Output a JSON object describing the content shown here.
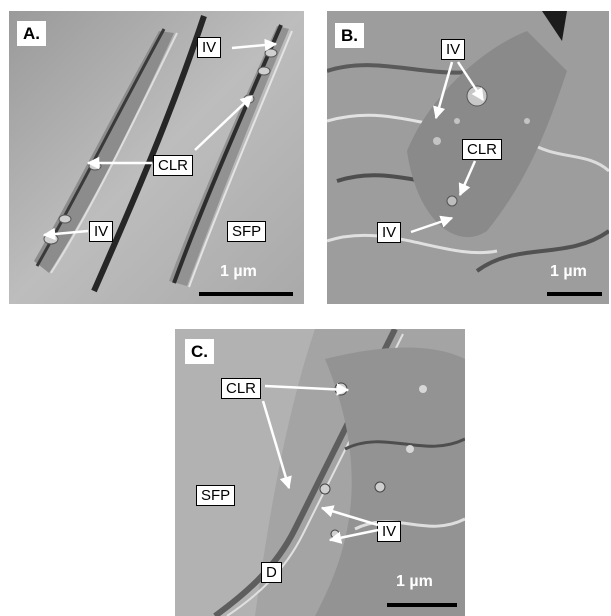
{
  "panels": [
    {
      "letter": "A.",
      "labels": {
        "iv_top": "IV",
        "clr": "CLR",
        "iv_bottom": "IV",
        "sfp": "SFP"
      },
      "scale": "1 µm"
    },
    {
      "letter": "B.",
      "labels": {
        "iv_top": "IV",
        "clr": "CLR",
        "iv_bottom": "IV"
      },
      "scale": "1 µm"
    },
    {
      "letter": "C.",
      "labels": {
        "clr": "CLR",
        "sfp": "SFP",
        "iv": "IV",
        "d": "D"
      },
      "scale": "1 µm"
    }
  ],
  "colors": {
    "arrow": "#ffffff",
    "scale_bar": "#000000"
  }
}
